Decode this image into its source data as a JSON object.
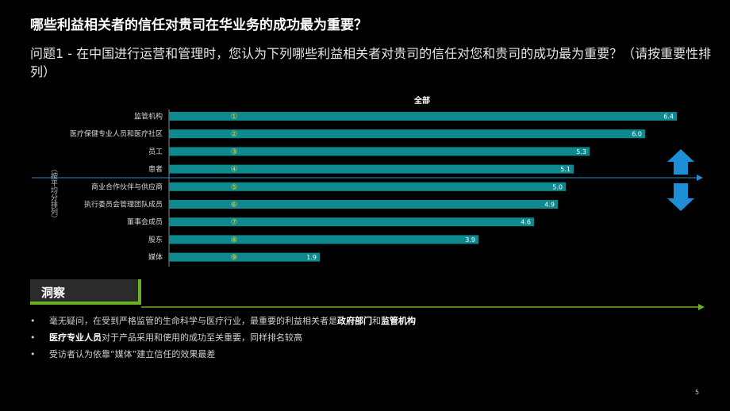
{
  "slide": {
    "title": "哪些利益相关者的信任对贵司在华业务的成功最为重要？",
    "question": "问题1 - 在中国进行运营和管理时，您认为下列哪些利益相关者对贵司的信任对您和贵司的成功最为重要？（请按重要性排列）",
    "page_number": "5"
  },
  "insights": {
    "header": "洞察",
    "bullets": [
      {
        "parts": [
          {
            "text": "毫无疑问，在受到严格监管的生命科学与医疗行业，最重要的利益相关者是",
            "bold": false
          },
          {
            "text": "政府部门",
            "bold": true
          },
          {
            "text": "和",
            "bold": false
          },
          {
            "text": "监管机构",
            "bold": true
          }
        ]
      },
      {
        "parts": [
          {
            "text": "医疗专业人员",
            "bold": true
          },
          {
            "text": "对于产品采用和使用的成功至关重要，同样排名较高",
            "bold": false
          }
        ]
      },
      {
        "parts": [
          {
            "text": "受访者认为依靠“媒体”建立信任的效果最差",
            "bold": false
          }
        ]
      }
    ]
  },
  "chart_data": {
    "type": "bar",
    "orientation": "horizontal",
    "title": "全部",
    "ylabel": "（按平均分排列）",
    "xlim": [
      0,
      7
    ],
    "categories": [
      "监管机构",
      "医疗保健专业人员和医疗社区",
      "员工",
      "患者",
      "商业合作伙伴与供应商",
      "执行委员会管理团队成员",
      "董事会成员",
      "股东",
      "媒体"
    ],
    "ranks": [
      "①",
      "②",
      "③",
      "④",
      "⑤",
      "⑥",
      "⑦",
      "⑧",
      "⑨"
    ],
    "values": [
      6.4,
      6.0,
      5.3,
      5.1,
      5.0,
      4.9,
      4.6,
      3.9,
      1.9
    ],
    "value_labels": [
      "6.4",
      "6.0",
      "5.3",
      "5.1",
      "5.0",
      "4.9",
      "4.6",
      "3.9",
      "1.9"
    ],
    "bar_color": "#0e8a8f",
    "arrow_color": "#1e8fd6",
    "accent_color": "#6ab023"
  }
}
